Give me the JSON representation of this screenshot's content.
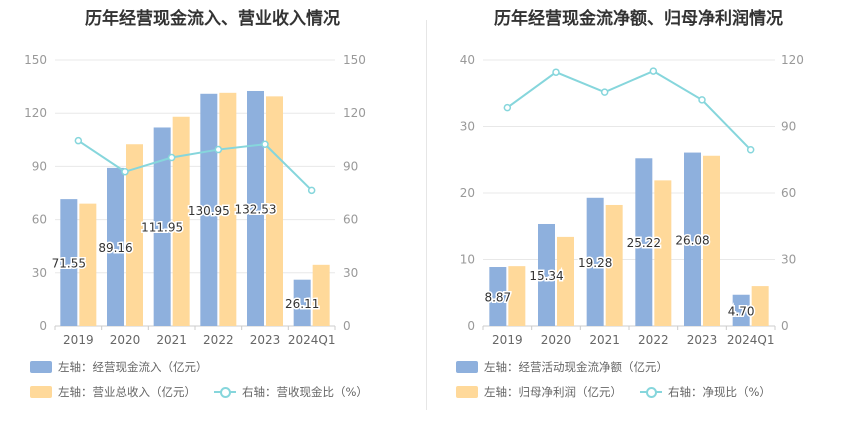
{
  "colors": {
    "blue": "#8eb0dd",
    "orange": "#ffd99a",
    "line": "#86d6dc",
    "grid": "#e8e8e8",
    "axis": "#999999",
    "title": "#333333"
  },
  "chart_data": [
    {
      "type": "bar",
      "title": "历年经营现金流入、营业收入情况",
      "categories": [
        "2019",
        "2020",
        "2021",
        "2022",
        "2023",
        "2024Q1"
      ],
      "left_axis": {
        "ylim": [
          0,
          150
        ],
        "ticks": [
          0,
          30,
          60,
          90,
          120,
          150
        ]
      },
      "right_axis": {
        "ylim": [
          0,
          150
        ],
        "ticks": [
          0,
          30,
          60,
          90,
          120,
          150
        ]
      },
      "series": [
        {
          "name": "左轴：经营现金流入（亿元）",
          "axis": "left",
          "type": "bar",
          "color": "#8eb0dd",
          "values": [
            71.55,
            89.16,
            111.95,
            130.95,
            132.53,
            26.11
          ],
          "labels": [
            "71.55",
            "89.16",
            "111.95",
            "130.95",
            "132.53",
            "26.11"
          ]
        },
        {
          "name": "左轴：营业总收入（亿元）",
          "axis": "left",
          "type": "bar",
          "color": "#ffd99a",
          "values": [
            69,
            102.5,
            118,
            131.5,
            129.5,
            34.5
          ]
        },
        {
          "name": "右轴：营收现金比（%）",
          "axis": "right",
          "type": "line",
          "color": "#86d6dc",
          "values": [
            104.5,
            87,
            95,
            99.5,
            102.5,
            76.5
          ]
        }
      ],
      "legend_rows": [
        [
          "左轴：经营现金流入（亿元）"
        ],
        [
          "左轴：营业总收入（亿元）",
          "右轴：营收现金比（%）"
        ]
      ]
    },
    {
      "type": "bar",
      "title": "历年经营现金流净额、归母净利润情况",
      "categories": [
        "2019",
        "2020",
        "2021",
        "2022",
        "2023",
        "2024Q1"
      ],
      "left_axis": {
        "ylim": [
          0,
          40
        ],
        "ticks": [
          0,
          10,
          20,
          30,
          40
        ]
      },
      "right_axis": {
        "ylim": [
          0,
          120
        ],
        "ticks": [
          0,
          30,
          60,
          90,
          120
        ]
      },
      "series": [
        {
          "name": "左轴：经营活动现金流净额（亿元）",
          "axis": "left",
          "type": "bar",
          "color": "#8eb0dd",
          "values": [
            8.87,
            15.34,
            19.28,
            25.22,
            26.08,
            4.7
          ],
          "labels": [
            "8.87",
            "15.34",
            "19.28",
            "25.22",
            "26.08",
            "4.70"
          ]
        },
        {
          "name": "左轴：归母净利润（亿元）",
          "axis": "left",
          "type": "bar",
          "color": "#ffd99a",
          "values": [
            9,
            13.4,
            18.2,
            21.9,
            25.6,
            6
          ]
        },
        {
          "name": "右轴：净现比（%）",
          "axis": "right",
          "type": "line",
          "color": "#86d6dc",
          "values": [
            98.5,
            114.5,
            105.5,
            115,
            102,
            79.5
          ]
        }
      ],
      "legend_rows": [
        [
          "左轴：经营活动现金流净额（亿元）"
        ],
        [
          "左轴：归母净利润（亿元）",
          "右轴：净现比（%）"
        ]
      ]
    }
  ]
}
